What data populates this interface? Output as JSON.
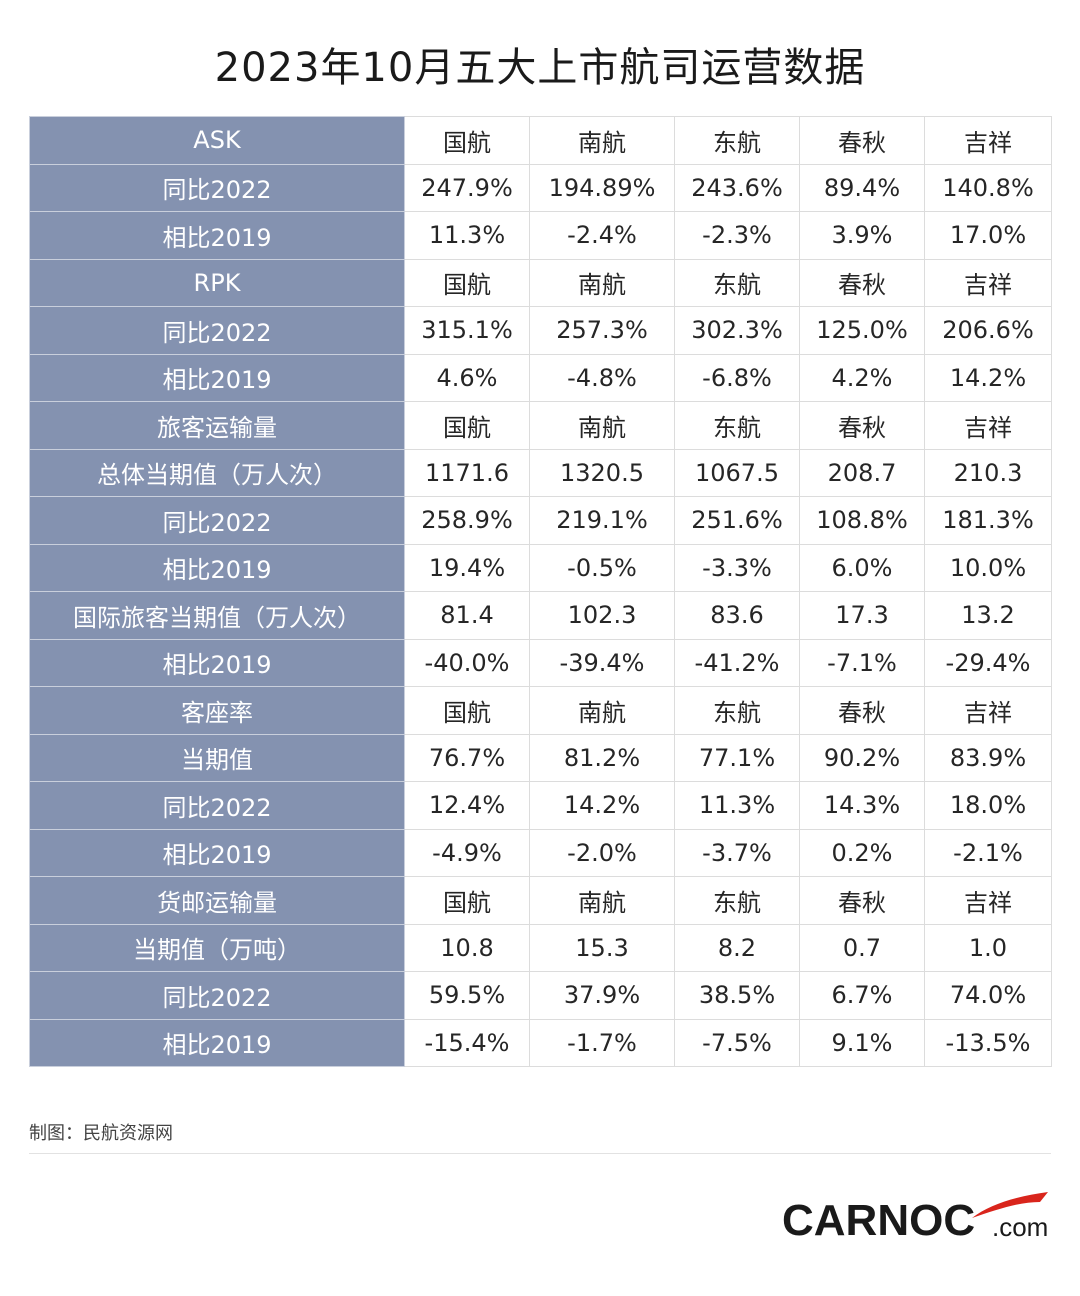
{
  "title": "2023年10月五大上市航司运营数据",
  "table": {
    "rows": [
      {
        "label": "ASK",
        "cells": [
          "国航",
          "南航",
          "东航",
          "春秋",
          "吉祥"
        ]
      },
      {
        "label": "同比2022",
        "cells": [
          "247.9%",
          "194.89%",
          "243.6%",
          "89.4%",
          "140.8%"
        ]
      },
      {
        "label": "相比2019",
        "cells": [
          "11.3%",
          "-2.4%",
          "-2.3%",
          "3.9%",
          "17.0%"
        ]
      },
      {
        "label": "RPK",
        "cells": [
          "国航",
          "南航",
          "东航",
          "春秋",
          "吉祥"
        ]
      },
      {
        "label": "同比2022",
        "cells": [
          "315.1%",
          "257.3%",
          "302.3%",
          "125.0%",
          "206.6%"
        ]
      },
      {
        "label": "相比2019",
        "cells": [
          "4.6%",
          "-4.8%",
          "-6.8%",
          "4.2%",
          "14.2%"
        ]
      },
      {
        "label": "旅客运输量",
        "cells": [
          "国航",
          "南航",
          "东航",
          "春秋",
          "吉祥"
        ]
      },
      {
        "label": "总体当期值（万人次）",
        "cells": [
          "1171.6",
          "1320.5",
          "1067.5",
          "208.7",
          "210.3"
        ]
      },
      {
        "label": "同比2022",
        "cells": [
          "258.9%",
          "219.1%",
          "251.6%",
          "108.8%",
          "181.3%"
        ]
      },
      {
        "label": "相比2019",
        "cells": [
          "19.4%",
          "-0.5%",
          "-3.3%",
          "6.0%",
          "10.0%"
        ]
      },
      {
        "label": "国际旅客当期值（万人次）",
        "cells": [
          "81.4",
          "102.3",
          "83.6",
          "17.3",
          "13.2"
        ]
      },
      {
        "label": "相比2019",
        "cells": [
          "-40.0%",
          "-39.4%",
          "-41.2%",
          "-7.1%",
          "-29.4%"
        ]
      },
      {
        "label": "客座率",
        "cells": [
          "国航",
          "南航",
          "东航",
          "春秋",
          "吉祥"
        ]
      },
      {
        "label": "当期值",
        "cells": [
          "76.7%",
          "81.2%",
          "77.1%",
          "90.2%",
          "83.9%"
        ]
      },
      {
        "label": "同比2022",
        "cells": [
          "12.4%",
          "14.2%",
          "11.3%",
          "14.3%",
          "18.0%"
        ]
      },
      {
        "label": "相比2019",
        "cells": [
          "-4.9%",
          "-2.0%",
          "-3.7%",
          "0.2%",
          "-2.1%"
        ]
      },
      {
        "label": "货邮运输量",
        "cells": [
          "国航",
          "南航",
          "东航",
          "春秋",
          "吉祥"
        ]
      },
      {
        "label": "当期值（万吨）",
        "cells": [
          "10.8",
          "15.3",
          "8.2",
          "0.7",
          "1.0"
        ]
      },
      {
        "label": "同比2022",
        "cells": [
          "59.5%",
          "37.9%",
          "38.5%",
          "6.7%",
          "74.0%"
        ]
      },
      {
        "label": "相比2019",
        "cells": [
          "-15.4%",
          "-1.7%",
          "-7.5%",
          "9.1%",
          "-13.5%"
        ]
      }
    ]
  },
  "footer": {
    "credit": "制图：民航资源网",
    "logo_main": "CARNOC",
    "logo_suffix": ".com"
  },
  "colors": {
    "label_column_bg": "#8492b0",
    "label_text": "#ffffff",
    "grid_line": "#dcdcdc",
    "logo_accent": "#d9251c"
  }
}
